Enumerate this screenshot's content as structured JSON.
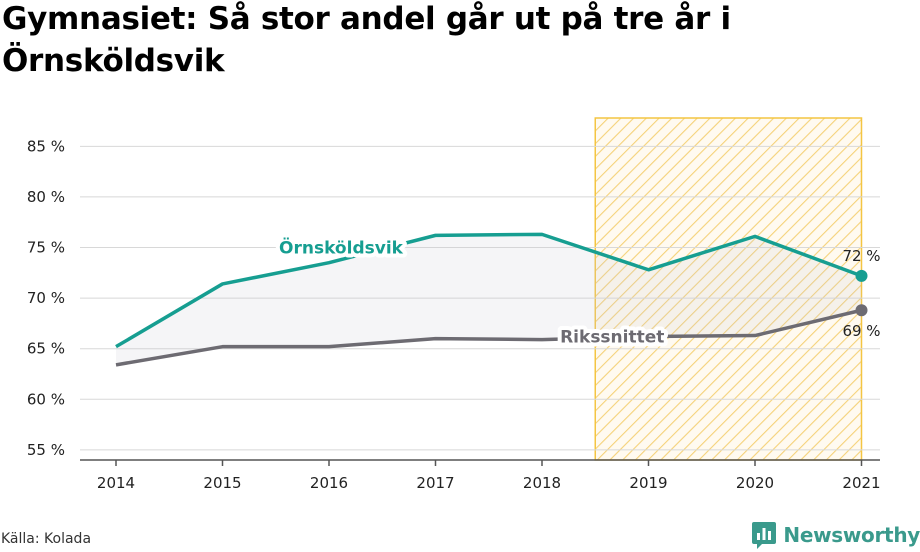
{
  "title": "Gymnasiet: Så stor andel går ut på tre år i Örnsköldsvik",
  "source": "Källa: Kolada",
  "brand": {
    "name": "Newsworthy",
    "logo_icon": "bar-chart-icon",
    "color": "#3a9a8c"
  },
  "chart_data": {
    "type": "line",
    "title": "Gymnasiet: Så stor andel går ut på tre år i Örnsköldsvik",
    "categories": [
      "2014",
      "2015",
      "2016",
      "2017",
      "2018",
      "2019",
      "2020",
      "2021"
    ],
    "series": [
      {
        "name": "Örnsköldsvik",
        "values": [
          65.2,
          71.4,
          73.5,
          76.2,
          76.3,
          72.8,
          76.1,
          72.2
        ],
        "color": "#169e91",
        "end_label": "72 %"
      },
      {
        "name": "Rikssnittet",
        "values": [
          63.4,
          65.2,
          65.2,
          66.0,
          65.9,
          66.2,
          66.3,
          68.8
        ],
        "color": "#6d6b72",
        "end_label": "69 %"
      }
    ],
    "yticks": [
      55,
      60,
      65,
      70,
      75,
      80,
      85
    ],
    "ytick_labels": [
      "55 %",
      "60 %",
      "65 %",
      "70 %",
      "75 %",
      "80 %",
      "85 %"
    ],
    "ylim": [
      54,
      87.8
    ],
    "highlight": {
      "from": "2018",
      "to": "2021",
      "pattern": "hatched",
      "color": "#f4c542"
    },
    "xlabel": "",
    "ylabel": "",
    "grid": true
  }
}
